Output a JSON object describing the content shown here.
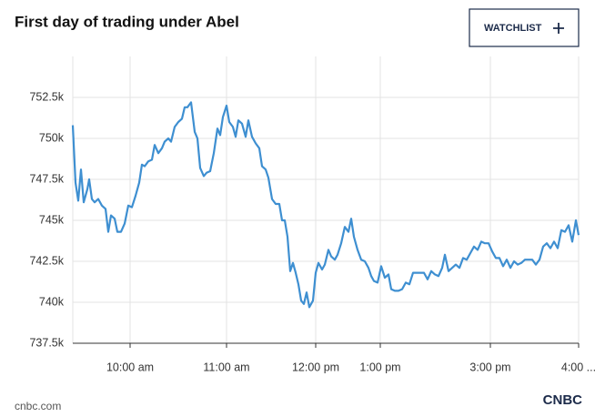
{
  "button": "WATCHLIST",
  "source": "cnbc.com",
  "logo": "CNBC",
  "chart_data": {
    "type": "line",
    "title": "First day of trading under Abel",
    "color": "#3e8fd1",
    "grid": true,
    "x": [
      0,
      3,
      6,
      9,
      12,
      16,
      18,
      21,
      24,
      28,
      32,
      36,
      39,
      42,
      46,
      49,
      53,
      57,
      61,
      65,
      69,
      73,
      76,
      79,
      83,
      87,
      90,
      94,
      98,
      101,
      105,
      108,
      112,
      116,
      120,
      123,
      126,
      130,
      134,
      137,
      140,
      144,
      147,
      151,
      155,
      159,
      162,
      165,
      169,
      172,
      176,
      179,
      182,
      186,
      190,
      193,
      197,
      201,
      205,
      208,
      212,
      215,
      219,
      223,
      227,
      230,
      233,
      236,
      239,
      242,
      245,
      248,
      251,
      254,
      257,
      260,
      264,
      267,
      270,
      274,
      277,
      281,
      284,
      288,
      291,
      295,
      299,
      303,
      306,
      309,
      313,
      317,
      321,
      325,
      328,
      331,
      335,
      339,
      343,
      347,
      350,
      354,
      358,
      362,
      366,
      370,
      374,
      378,
      382,
      386,
      390,
      394,
      398,
      402,
      406,
      409,
      413,
      417,
      421,
      425,
      429,
      433,
      437,
      441,
      445,
      449,
      453,
      457,
      461,
      465,
      469,
      473,
      477,
      481,
      485,
      489,
      493,
      497,
      501,
      505,
      509,
      513,
      517,
      521,
      525,
      529,
      533,
      537,
      541,
      545,
      549,
      553,
      556
    ],
    "values": [
      750800,
      747300,
      746200,
      748100,
      746100,
      746900,
      747500,
      746300,
      746100,
      746300,
      745900,
      745700,
      744300,
      745300,
      745100,
      744300,
      744300,
      744800,
      745900,
      745800,
      746500,
      747300,
      748400,
      748300,
      748600,
      748700,
      749600,
      749100,
      749400,
      749800,
      750000,
      749800,
      750700,
      751000,
      751200,
      751900,
      751900,
      752200,
      750400,
      750000,
      748200,
      747700,
      747900,
      748000,
      749100,
      750600,
      750200,
      751300,
      752000,
      751000,
      750700,
      750100,
      751100,
      750900,
      750100,
      751100,
      750100,
      749700,
      749400,
      748300,
      748100,
      747600,
      746300,
      746000,
      746000,
      745000,
      745000,
      744000,
      741900,
      742400,
      741800,
      741100,
      740100,
      739900,
      740600,
      739700,
      740100,
      741800,
      742400,
      742000,
      742300,
      743200,
      742800,
      742600,
      742900,
      743600,
      744600,
      744300,
      745100,
      744000,
      743200,
      742600,
      742500,
      742100,
      741600,
      741300,
      741200,
      742200,
      741500,
      741700,
      740800,
      740700,
      740700,
      740800,
      741200,
      741100,
      741800,
      741800,
      741800,
      741800,
      741400,
      741900,
      741700,
      741600,
      742100,
      742900,
      741900,
      742100,
      742300,
      742100,
      742700,
      742600,
      743000,
      743400,
      743200,
      743700,
      743600,
      743600,
      743100,
      742700,
      742700,
      742200,
      742600,
      742100,
      742500,
      742300,
      742400,
      742600,
      742600,
      742600,
      742300,
      742600,
      743400,
      743600,
      743300,
      743700,
      743300,
      744400,
      744300,
      744700,
      743700,
      745000,
      744100
    ],
    "xlim": [
      0,
      556
    ],
    "xticks": [
      {
        "value": 63,
        "label": "10:00 am"
      },
      {
        "value": 169,
        "label": "11:00 am"
      },
      {
        "value": 267,
        "label": "12:00 pm"
      },
      {
        "value": 338,
        "label": "1:00 pm"
      },
      {
        "value": 459,
        "label": "3:00 pm"
      },
      {
        "value": 556,
        "label": "4:00 ..."
      }
    ],
    "ylim": [
      737500,
      755000
    ],
    "yticks": [
      {
        "value": 737500,
        "label": "737.5k"
      },
      {
        "value": 740000,
        "label": "740k"
      },
      {
        "value": 742500,
        "label": "742.5k"
      },
      {
        "value": 745000,
        "label": "745k"
      },
      {
        "value": 747500,
        "label": "747.5k"
      },
      {
        "value": 750000,
        "label": "750k"
      },
      {
        "value": 752500,
        "label": "752.5k"
      }
    ]
  }
}
